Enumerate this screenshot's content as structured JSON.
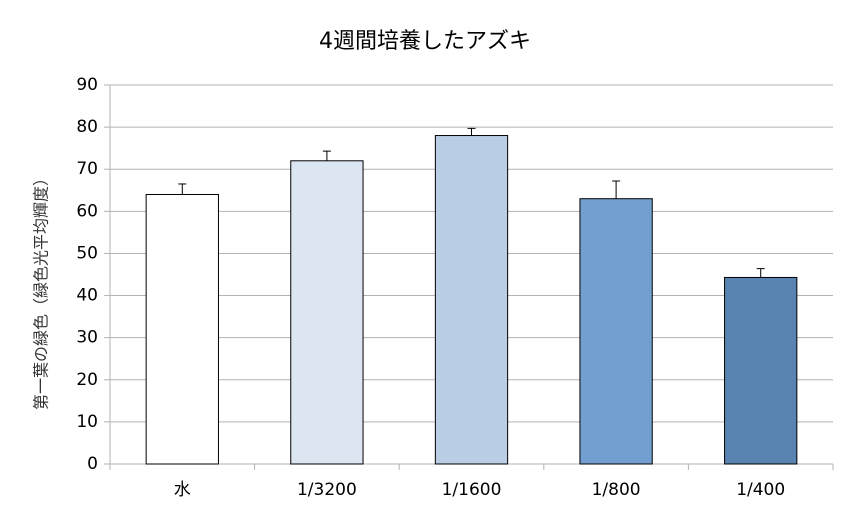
{
  "chart_data": {
    "type": "bar",
    "title": "4週間培養したアズキ",
    "y_label": "第一葉の緑色（緑色光平均輝度）",
    "categories": [
      "水",
      "1/3200",
      "1/1600",
      "1/800",
      "1/400"
    ],
    "values": [
      64,
      72,
      78,
      63,
      44.3
    ],
    "errors": [
      2.5,
      2.3,
      1.7,
      4.2,
      2.1
    ],
    "colors": [
      "#ffffff",
      "#dce6f2",
      "#b9cde5",
      "#729fcf",
      "#5983b0"
    ],
    "ylim": [
      0,
      90
    ],
    "yticks": [
      0,
      10,
      20,
      30,
      40,
      50,
      60,
      70,
      80,
      90
    ],
    "grid": true
  }
}
